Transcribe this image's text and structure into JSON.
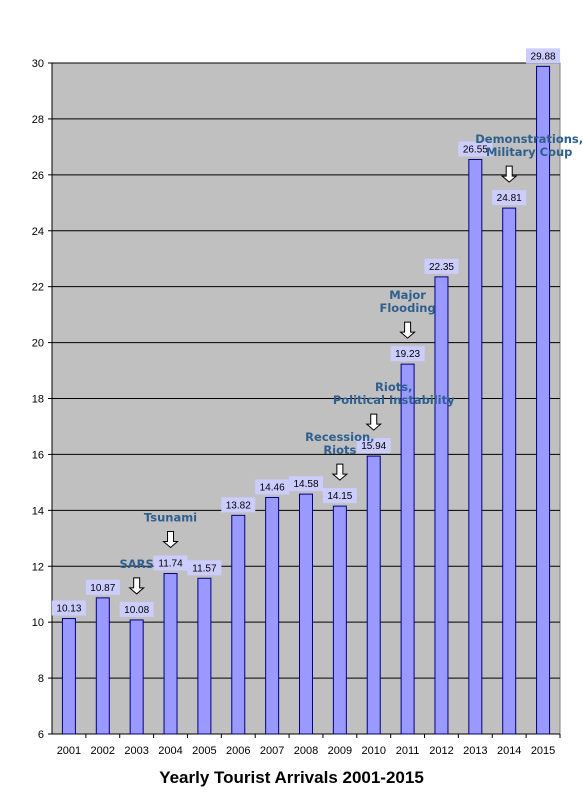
{
  "chart_data": {
    "type": "bar",
    "title": "Yearly Tourist Arrivals 2001-2015",
    "xlabel": "",
    "ylabel": "",
    "ylim": [
      6,
      30
    ],
    "yticks": [
      6,
      8,
      10,
      12,
      14,
      16,
      18,
      20,
      22,
      24,
      26,
      28,
      30
    ],
    "grid": true,
    "legend": "none",
    "categories": [
      "2001",
      "2002",
      "2003",
      "2004",
      "2005",
      "2006",
      "2007",
      "2008",
      "2009",
      "2010",
      "2011",
      "2012",
      "2013",
      "2014",
      "2015"
    ],
    "values": [
      10.13,
      10.87,
      10.08,
      11.74,
      11.57,
      13.82,
      14.46,
      14.58,
      14.15,
      15.94,
      19.23,
      22.35,
      26.55,
      24.81,
      29.88
    ],
    "value_labels": [
      "10.13",
      "10.87",
      "10.08",
      "11.74",
      "11.57",
      "13.82",
      "14.46",
      "14.58",
      "14.15",
      "15.94",
      "19.23",
      "22.35",
      "26.55",
      "24.81",
      "29.88"
    ],
    "annotations": [
      {
        "category": "2003",
        "lines": [
          "SARS"
        ]
      },
      {
        "category": "2004",
        "lines": [
          "Tsunami"
        ]
      },
      {
        "category": "2009",
        "lines": [
          "Recession,",
          "Riots"
        ]
      },
      {
        "category": "2010",
        "lines": [
          "Riots,",
          "Political Instability"
        ]
      },
      {
        "category": "2011",
        "lines": [
          "Major",
          "Flooding"
        ]
      },
      {
        "category": "2014",
        "lines": [
          "Demonstrations,",
          "Military Coup"
        ]
      }
    ],
    "colors": {
      "bar_fill": "#9999ff",
      "bar_stroke": "#000080",
      "plot_background": "#c0c0c0",
      "gridline": "#000000",
      "label_box": "#ccccff",
      "annotation_text": "#2f5f8f"
    }
  }
}
